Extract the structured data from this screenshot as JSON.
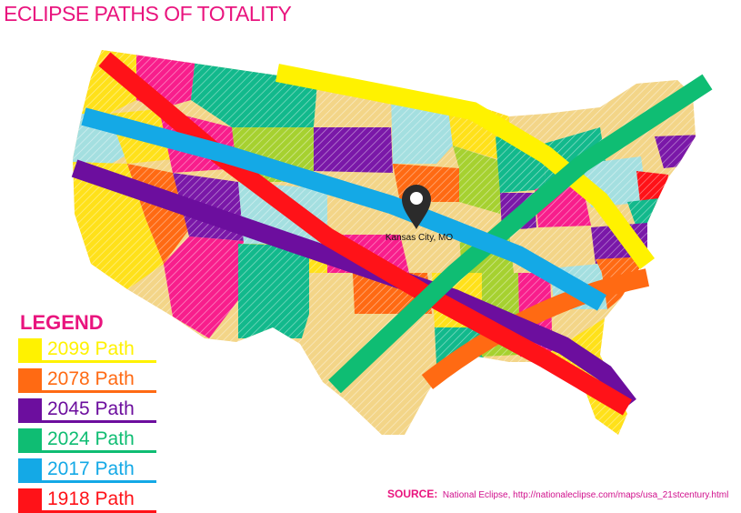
{
  "title": "ECLIPSE PATHS OF TOTALITY",
  "colors": {
    "title": "#e9147e",
    "legend_title": "#e9147e",
    "source_label": "#e9147e",
    "source_text": "#d0108c",
    "marker": "#2b2b2b"
  },
  "marker": {
    "icon": "map-pin-icon",
    "city_label": "Kansas City, MO"
  },
  "legend": {
    "title": "LEGEND",
    "items": [
      {
        "label": "2099 Path",
        "color": "#fff200"
      },
      {
        "label": "2078 Path",
        "color": "#ff6a13"
      },
      {
        "label": "2045 Path",
        "color": "#6c0e9e"
      },
      {
        "label": "2024 Path",
        "color": "#0fbd73"
      },
      {
        "label": "2017 Path",
        "color": "#14a9e6"
      },
      {
        "label": "1918 Path",
        "color": "#ff1218"
      }
    ]
  },
  "source": {
    "label": "SOURCE:",
    "text": "National Eclipse, http://nationaleclipse.com/maps/usa_21stcentury.html"
  }
}
